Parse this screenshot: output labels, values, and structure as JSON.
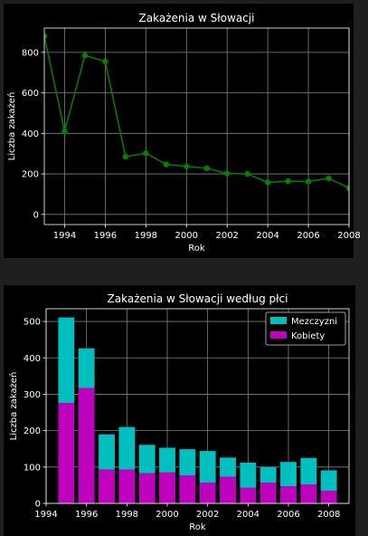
{
  "colors": {
    "page_bg": "#1f1f1f",
    "panel_bg": "#000000",
    "grid": "#808080",
    "line_series": "#008000",
    "men": "#00bfbf",
    "women": "#bf00bf",
    "text": "#ffffff"
  },
  "chart_data": [
    {
      "type": "line",
      "title": "Zakażenia w Słowacji",
      "xlabel": "Rok",
      "ylabel": "Liczba zakażeń",
      "xlim": [
        1993,
        2008
      ],
      "ylim": [
        -50,
        920
      ],
      "xticks": [
        "1994",
        "1996",
        "1998",
        "2000",
        "2002",
        "2004",
        "2006",
        "2008"
      ],
      "yticks": [
        "0",
        "200",
        "400",
        "600",
        "800"
      ],
      "grid": true,
      "x": [
        1993,
        1994,
        1995,
        1996,
        1997,
        1998,
        1999,
        2000,
        2001,
        2002,
        2003,
        2004,
        2005,
        2006,
        2007,
        2008
      ],
      "series": [
        {
          "values": [
            880,
            410,
            785,
            755,
            285,
            302,
            247,
            237,
            228,
            202,
            200,
            158,
            164,
            163,
            178,
            130
          ]
        }
      ]
    },
    {
      "type": "bar",
      "stacked": true,
      "title": "Zakażenia w Słowacji według płci",
      "xlabel": "Rok",
      "ylabel": "Liczba zakażeń",
      "xlim": [
        1994,
        2009
      ],
      "ylim": [
        0,
        535
      ],
      "xticks": [
        "1994",
        "1996",
        "1998",
        "2000",
        "2002",
        "2004",
        "2006",
        "2008"
      ],
      "yticks": [
        "0",
        "100",
        "200",
        "300",
        "400",
        "500"
      ],
      "grid": true,
      "legend_position": "top-right",
      "categories": [
        1995,
        1996,
        1997,
        1998,
        1999,
        2000,
        2001,
        2002,
        2003,
        2004,
        2005,
        2006,
        2007,
        2008
      ],
      "series": [
        {
          "name": "Kobiety",
          "values": [
            276,
            317,
            93,
            93,
            83,
            85,
            77,
            57,
            73,
            43,
            57,
            47,
            52,
            35
          ]
        },
        {
          "name": "Mezczyzni",
          "values": [
            235,
            109,
            97,
            117,
            78,
            68,
            72,
            87,
            53,
            69,
            43,
            67,
            73,
            56
          ]
        }
      ]
    }
  ]
}
